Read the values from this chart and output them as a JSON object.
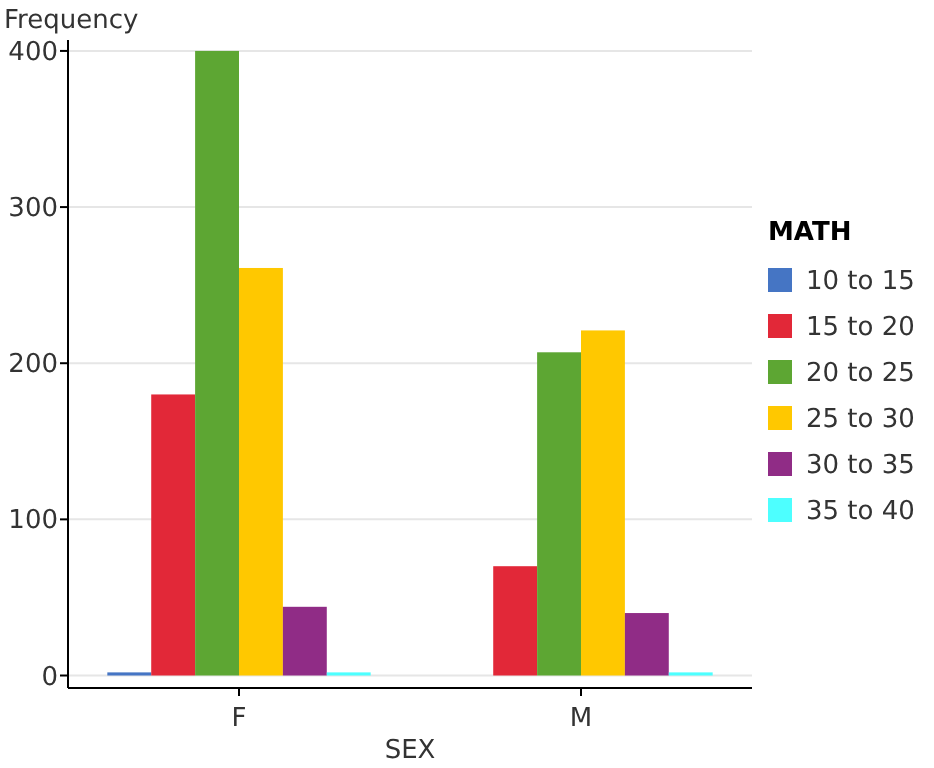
{
  "chart_data": {
    "type": "bar",
    "xlabel": "SEX",
    "ylabel": "Frequency",
    "legend_title": "MATH",
    "categories": [
      "F",
      "M"
    ],
    "series": [
      {
        "name": "10 to 15",
        "color": "#4575c4",
        "values": [
          2,
          0
        ]
      },
      {
        "name": "15 to 20",
        "color": "#e22838",
        "values": [
          180,
          70
        ]
      },
      {
        "name": "20 to 25",
        "color": "#5da633",
        "values": [
          400,
          207
        ]
      },
      {
        "name": "25 to 30",
        "color": "#ffc800",
        "values": [
          261,
          221
        ]
      },
      {
        "name": "30 to 35",
        "color": "#902c86",
        "values": [
          44,
          40
        ]
      },
      {
        "name": "35 to 40",
        "color": "#4dffff",
        "values": [
          2,
          2
        ]
      }
    ],
    "ylim": [
      -8,
      407
    ],
    "yticks": [
      0,
      100,
      200,
      300,
      400
    ],
    "grid": "y",
    "legend": "right"
  }
}
